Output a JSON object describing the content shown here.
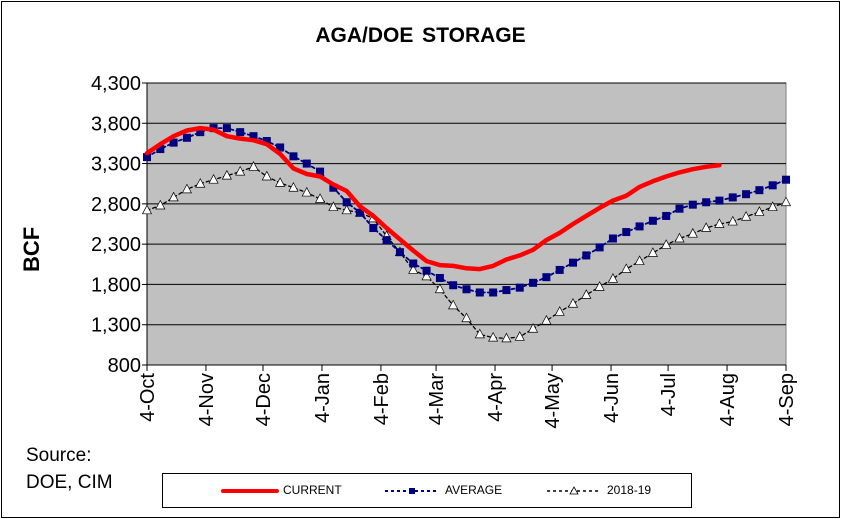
{
  "chart_data": {
    "type": "line",
    "title": "AGA/DOE  STORAGE",
    "ylabel": "BCF",
    "xlabel": "",
    "ylim": [
      800,
      4300
    ],
    "yticks": [
      "4,300",
      "3,800",
      "3,300",
      "2,800",
      "2,300",
      "1,800",
      "1,300",
      "800"
    ],
    "ytick_values": [
      4300,
      3800,
      3300,
      2800,
      2300,
      1800,
      1300,
      800
    ],
    "xlim": [
      "2019-10-04",
      "2020-09-04"
    ],
    "xticks": [
      {
        "date": "2019-10-04",
        "label": "4-Oct"
      },
      {
        "date": "2019-11-04",
        "label": "4-Nov"
      },
      {
        "date": "2019-12-04",
        "label": "4-Dec"
      },
      {
        "date": "2020-01-04",
        "label": "4-Jan"
      },
      {
        "date": "2020-02-04",
        "label": "4-Feb"
      },
      {
        "date": "2020-03-04",
        "label": "4-Mar"
      },
      {
        "date": "2020-04-04",
        "label": "4-Apr"
      },
      {
        "date": "2020-05-04",
        "label": "4-May"
      },
      {
        "date": "2020-06-04",
        "label": "4-Jun"
      },
      {
        "date": "2020-07-04",
        "label": "4-Jul"
      },
      {
        "date": "2020-08-04",
        "label": "4-Aug"
      },
      {
        "date": "2020-09-04",
        "label": "4-Sep"
      }
    ],
    "grid": {
      "horizontal": true,
      "vertical": false
    },
    "plot_background": "#c0c0c0",
    "legend_placement": "bottom",
    "series": [
      {
        "name": "CURRENT",
        "color": "#ff0000",
        "marker": "none",
        "x": [
          "2019-10-04",
          "2019-10-11",
          "2019-10-18",
          "2019-10-25",
          "2019-11-01",
          "2019-11-08",
          "2019-11-15",
          "2019-11-22",
          "2019-11-29",
          "2019-12-06",
          "2019-12-13",
          "2019-12-20",
          "2019-12-27",
          "2020-01-03",
          "2020-01-10",
          "2020-01-17",
          "2020-01-24",
          "2020-01-31",
          "2020-02-07",
          "2020-02-14",
          "2020-02-21",
          "2020-02-28",
          "2020-03-06",
          "2020-03-13",
          "2020-03-20",
          "2020-03-27",
          "2020-04-03",
          "2020-04-10",
          "2020-04-17",
          "2020-04-24",
          "2020-05-01",
          "2020-05-08",
          "2020-05-15",
          "2020-05-22",
          "2020-05-29",
          "2020-06-05",
          "2020-06-12",
          "2020-06-19",
          "2020-06-26",
          "2020-07-03",
          "2020-07-10",
          "2020-07-17",
          "2020-07-24",
          "2020-07-31"
        ],
        "values": [
          3430,
          3540,
          3640,
          3710,
          3740,
          3720,
          3640,
          3610,
          3590,
          3540,
          3420,
          3240,
          3170,
          3140,
          3040,
          2960,
          2770,
          2650,
          2500,
          2360,
          2220,
          2090,
          2040,
          2030,
          2000,
          1990,
          2030,
          2110,
          2160,
          2230,
          2350,
          2440,
          2550,
          2650,
          2750,
          2840,
          2900,
          3010,
          3080,
          3140,
          3190,
          3230,
          3260,
          3280
        ]
      },
      {
        "name": "AVERAGE",
        "color": "#000080",
        "marker": "square",
        "x": [
          "2019-10-04",
          "2019-10-11",
          "2019-10-18",
          "2019-10-25",
          "2019-11-01",
          "2019-11-08",
          "2019-11-15",
          "2019-11-22",
          "2019-11-29",
          "2019-12-06",
          "2019-12-13",
          "2019-12-20",
          "2019-12-27",
          "2020-01-03",
          "2020-01-10",
          "2020-01-17",
          "2020-01-24",
          "2020-01-31",
          "2020-02-07",
          "2020-02-14",
          "2020-02-21",
          "2020-02-28",
          "2020-03-06",
          "2020-03-13",
          "2020-03-20",
          "2020-03-27",
          "2020-04-03",
          "2020-04-10",
          "2020-04-17",
          "2020-04-24",
          "2020-05-01",
          "2020-05-08",
          "2020-05-15",
          "2020-05-22",
          "2020-05-29",
          "2020-06-05",
          "2020-06-12",
          "2020-06-19",
          "2020-06-26",
          "2020-07-03",
          "2020-07-10",
          "2020-07-17",
          "2020-07-24",
          "2020-07-31",
          "2020-08-07",
          "2020-08-14",
          "2020-08-21",
          "2020-08-28",
          "2020-09-04"
        ],
        "values": [
          3380,
          3480,
          3560,
          3620,
          3690,
          3740,
          3740,
          3690,
          3640,
          3580,
          3500,
          3390,
          3300,
          3200,
          3000,
          2820,
          2690,
          2500,
          2350,
          2200,
          2060,
          1970,
          1880,
          1790,
          1740,
          1700,
          1700,
          1730,
          1760,
          1820,
          1890,
          1980,
          2070,
          2160,
          2260,
          2370,
          2450,
          2520,
          2590,
          2650,
          2740,
          2790,
          2820,
          2840,
          2880,
          2920,
          2970,
          3030,
          3100
        ]
      },
      {
        "name": "2018-19",
        "color": "#000000",
        "marker": "triangle",
        "x": [
          "2019-10-04",
          "2019-10-11",
          "2019-10-18",
          "2019-10-25",
          "2019-11-01",
          "2019-11-08",
          "2019-11-15",
          "2019-11-22",
          "2019-11-29",
          "2019-12-06",
          "2019-12-13",
          "2019-12-20",
          "2019-12-27",
          "2020-01-03",
          "2020-01-10",
          "2020-01-17",
          "2020-01-24",
          "2020-01-31",
          "2020-02-07",
          "2020-02-14",
          "2020-02-21",
          "2020-02-28",
          "2020-03-06",
          "2020-03-13",
          "2020-03-20",
          "2020-03-27",
          "2020-04-03",
          "2020-04-10",
          "2020-04-17",
          "2020-04-24",
          "2020-05-01",
          "2020-05-08",
          "2020-05-15",
          "2020-05-22",
          "2020-05-29",
          "2020-06-05",
          "2020-06-12",
          "2020-06-19",
          "2020-06-26",
          "2020-07-03",
          "2020-07-10",
          "2020-07-17",
          "2020-07-24",
          "2020-07-31",
          "2020-08-07",
          "2020-08-14",
          "2020-08-21",
          "2020-08-28",
          "2020-09-04"
        ],
        "values": [
          2720,
          2780,
          2880,
          2980,
          3050,
          3100,
          3150,
          3200,
          3260,
          3140,
          3060,
          3000,
          2940,
          2860,
          2760,
          2720,
          2690,
          2620,
          2400,
          2200,
          1980,
          1900,
          1740,
          1540,
          1380,
          1180,
          1140,
          1130,
          1150,
          1250,
          1350,
          1460,
          1560,
          1670,
          1770,
          1870,
          1990,
          2090,
          2190,
          2290,
          2370,
          2430,
          2500,
          2550,
          2580,
          2640,
          2700,
          2760,
          2820
        ]
      }
    ]
  },
  "source": {
    "line1": "Source:",
    "line2": "DOE, CIM"
  }
}
